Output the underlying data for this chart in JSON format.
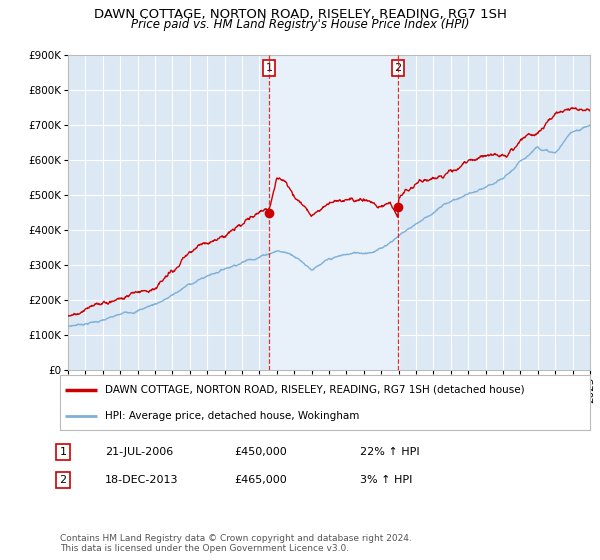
{
  "title": "DAWN COTTAGE, NORTON ROAD, RISELEY, READING, RG7 1SH",
  "subtitle": "Price paid vs. HM Land Registry's House Price Index (HPI)",
  "ylim": [
    0,
    900000
  ],
  "yticks": [
    0,
    100000,
    200000,
    300000,
    400000,
    500000,
    600000,
    700000,
    800000,
    900000
  ],
  "ytick_labels": [
    "£0",
    "£100K",
    "£200K",
    "£300K",
    "£400K",
    "£500K",
    "£600K",
    "£700K",
    "£800K",
    "£900K"
  ],
  "bg_color": "#ffffff",
  "plot_bg_color": "#dce9f5",
  "highlight_color": "#e8f0fa",
  "grid_color": "#ffffff",
  "purchase1_year": 2006.55,
  "purchase1_price": 450000,
  "purchase2_year": 2013.96,
  "purchase2_price": 465000,
  "red_color": "#cc0000",
  "blue_color": "#7fb0d8",
  "marker_color": "#cc0000",
  "legend_line1": "DAWN COTTAGE, NORTON ROAD, RISELEY, READING, RG7 1SH (detached house)",
  "legend_line2": "HPI: Average price, detached house, Wokingham",
  "purchase1_date": "21-JUL-2006",
  "purchase1_amount": "£450,000",
  "purchase1_hpi": "22% ↑ HPI",
  "purchase2_date": "18-DEC-2013",
  "purchase2_amount": "£465,000",
  "purchase2_hpi": "3% ↑ HPI",
  "footnote": "Contains HM Land Registry data © Crown copyright and database right 2024.\nThis data is licensed under the Open Government Licence v3.0.",
  "title_fontsize": 9.5,
  "subtitle_fontsize": 8.5,
  "tick_fontsize": 7.5,
  "legend_fontsize": 7.5,
  "info_fontsize": 8,
  "footnote_fontsize": 6.5
}
